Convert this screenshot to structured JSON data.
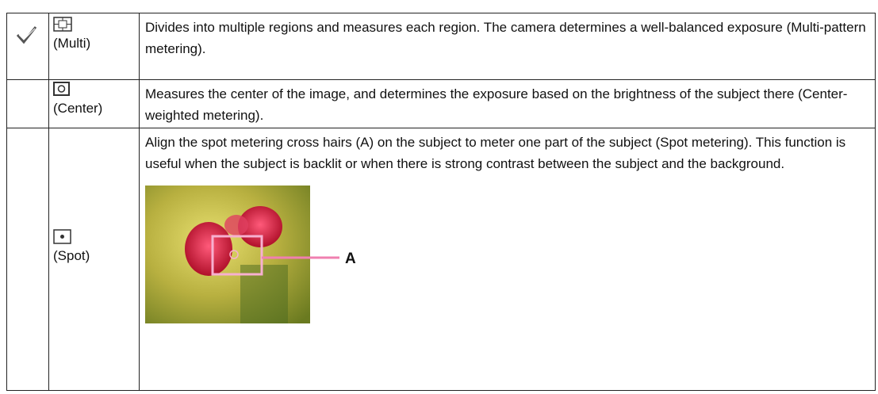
{
  "table": {
    "rows": [
      {
        "mode": "(Multi)",
        "description": "Divides into multiple regions and measures each region. The camera determines a well-balanced exposure (Multi-pattern metering)."
      },
      {
        "mode": "(Center)",
        "description": "Measures the center of the image, and determines the exposure based on the brightness of the subject there (Center-weighted metering)."
      },
      {
        "mode": "(Spot)",
        "description": "Align the spot metering cross hairs (A) on the subject to meter one part of the subject (Spot metering). This function is useful when the subject is backlit or when there is strong contrast between the subject and the background."
      }
    ],
    "callout": "A"
  }
}
